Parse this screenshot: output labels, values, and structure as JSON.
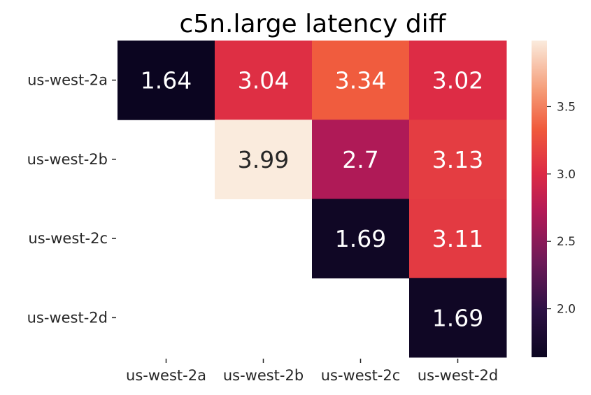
{
  "chart_data": {
    "type": "heatmap",
    "title": "c5n.large latency diff",
    "x_categories": [
      "us-west-2a",
      "us-west-2b",
      "us-west-2c",
      "us-west-2d"
    ],
    "y_categories": [
      "us-west-2a",
      "us-west-2b",
      "us-west-2c",
      "us-west-2d"
    ],
    "values": [
      [
        1.64,
        3.04,
        3.34,
        3.02
      ],
      [
        null,
        3.99,
        2.7,
        3.13
      ],
      [
        null,
        null,
        1.69,
        3.11
      ],
      [
        null,
        null,
        null,
        1.69
      ]
    ],
    "value_labels": [
      [
        "1.64",
        "3.04",
        "3.34",
        "3.02"
      ],
      [
        null,
        "3.99",
        "2.7",
        "3.13"
      ],
      [
        null,
        null,
        "1.69",
        "3.11"
      ],
      [
        null,
        null,
        null,
        "1.69"
      ]
    ],
    "colormap": "rocket",
    "color_range": [
      1.64,
      3.99
    ],
    "colorbar_ticks": [
      "2.0",
      "2.5",
      "3.0",
      "3.5"
    ],
    "colorbar_tick_values": [
      2.0,
      2.5,
      3.0,
      3.5
    ],
    "xlabel": "",
    "ylabel": "",
    "grid": false,
    "colors": {
      "light_text": "#ffffff",
      "dark_text": "#262626",
      "axis_text": "#262626"
    }
  }
}
